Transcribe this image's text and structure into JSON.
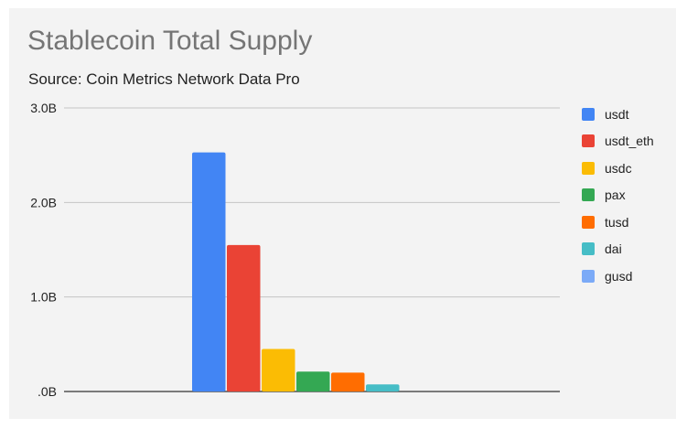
{
  "chart_data": {
    "type": "bar",
    "title": "Stablecoin Total Supply",
    "subtitle": "Source: Coin Metrics Network Data Pro",
    "xlabel": "",
    "ylabel": "",
    "ylim": [
      0,
      3.0
    ],
    "yticks": [
      {
        "value": 0,
        "label": ".0B"
      },
      {
        "value": 1.0,
        "label": "1.0B"
      },
      {
        "value": 2.0,
        "label": "2.0B"
      },
      {
        "value": 3.0,
        "label": "3.0B"
      }
    ],
    "grid": true,
    "legend_position": "right",
    "series": [
      {
        "name": "usdt",
        "value": 2.53,
        "color": "#4285f4"
      },
      {
        "name": "usdt_eth",
        "value": 1.55,
        "color": "#ea4335"
      },
      {
        "name": "usdc",
        "value": 0.45,
        "color": "#fbbc04"
      },
      {
        "name": "pax",
        "value": 0.21,
        "color": "#34a853"
      },
      {
        "name": "tusd",
        "value": 0.2,
        "color": "#ff6d01"
      },
      {
        "name": "dai",
        "value": 0.075,
        "color": "#46bdc6"
      },
      {
        "name": "gusd",
        "value": 0.0,
        "color": "#7baaf7"
      }
    ]
  }
}
